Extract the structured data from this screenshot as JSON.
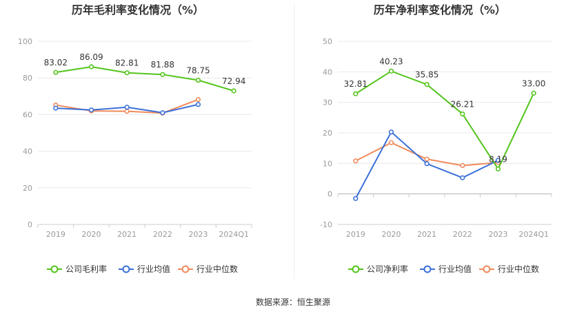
{
  "source_text": "数据来源：恒生聚源",
  "colors": {
    "company": "#52c41a",
    "industry_avg": "#3a6fd8",
    "industry_median": "#ef8a5a"
  },
  "chart_data": [
    {
      "type": "line",
      "title": "历年毛利率变化情况（%）",
      "categories": [
        "2019",
        "2020",
        "2021",
        "2022",
        "2023",
        "2024Q1"
      ],
      "ylim": [
        0,
        100
      ],
      "yticks": [
        "0",
        "20",
        "40",
        "60",
        "80",
        "100"
      ],
      "grid": true,
      "legend_position": "bottom",
      "series": [
        {
          "name": "公司毛利率",
          "values": [
            83.02,
            86.09,
            82.81,
            81.88,
            78.75,
            72.94
          ],
          "labels": [
            "83.02",
            "86.09",
            "82.81",
            "81.88",
            "78.75",
            "72.94"
          ]
        },
        {
          "name": "行业均值",
          "values": [
            63.5,
            62.5,
            64.0,
            61.0,
            65.5,
            null
          ]
        },
        {
          "name": "行业中位数",
          "values": [
            65.2,
            62.0,
            61.8,
            60.8,
            68.2,
            null
          ]
        }
      ]
    },
    {
      "type": "line",
      "title": "历年净利率变化情况（%）",
      "categories": [
        "2019",
        "2020",
        "2021",
        "2022",
        "2023",
        "2024Q1"
      ],
      "ylim": [
        -10,
        50
      ],
      "yticks": [
        "-10",
        "0",
        "10",
        "20",
        "30",
        "40",
        "50"
      ],
      "grid": true,
      "legend_position": "bottom",
      "series": [
        {
          "name": "公司净利率",
          "values": [
            32.81,
            40.23,
            35.85,
            26.21,
            8.19,
            33.0
          ],
          "labels": [
            "32.81",
            "40.23",
            "35.85",
            "26.21",
            "8.19",
            "33.00"
          ]
        },
        {
          "name": "行业均值",
          "values": [
            -1.5,
            20.3,
            9.9,
            5.3,
            11.0,
            null
          ]
        },
        {
          "name": "行业中位数",
          "values": [
            10.8,
            16.8,
            11.4,
            9.3,
            10.3,
            null
          ]
        }
      ]
    }
  ]
}
